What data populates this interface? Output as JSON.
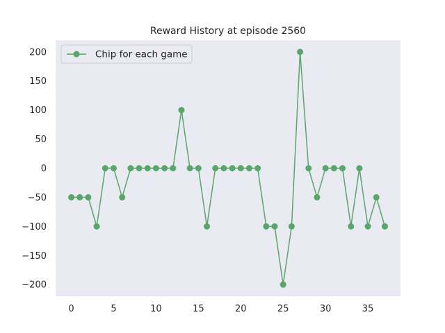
{
  "chart_data": {
    "type": "line",
    "title": "Reward History at episode 2560",
    "xlabel": "",
    "ylabel": "",
    "x": [
      0,
      1,
      2,
      3,
      4,
      5,
      6,
      7,
      8,
      9,
      10,
      11,
      12,
      13,
      14,
      15,
      16,
      17,
      18,
      19,
      20,
      21,
      22,
      23,
      24,
      25,
      26,
      27,
      28,
      29,
      30,
      31,
      32,
      33,
      34,
      35,
      36,
      37
    ],
    "series": [
      {
        "name": "Chip for each game",
        "color": "#55a868",
        "marker": "circle",
        "values": [
          -50,
          -50,
          -50,
          -100,
          0,
          0,
          -50,
          0,
          0,
          0,
          0,
          0,
          0,
          100,
          0,
          0,
          -100,
          0,
          0,
          0,
          0,
          0,
          0,
          -100,
          -100,
          -200,
          -100,
          200,
          0,
          -50,
          0,
          0,
          0,
          -100,
          0,
          -100,
          -50,
          -100
        ]
      }
    ],
    "xlim": [
      -1.85,
      38.85
    ],
    "ylim": [
      -220,
      220
    ],
    "xticks": [
      0,
      5,
      10,
      15,
      20,
      25,
      30,
      35
    ],
    "xtick_labels": [
      "0",
      "5",
      "10",
      "15",
      "20",
      "25",
      "30",
      "35"
    ],
    "yticks": [
      -200,
      -150,
      -100,
      -50,
      0,
      50,
      100,
      150,
      200
    ],
    "ytick_labels": [
      "−200",
      "−150",
      "−100",
      "−50",
      "0",
      "50",
      "100",
      "150",
      "200"
    ],
    "grid": false,
    "legend_position": "top-left",
    "plot_background": "#eaeaf2"
  }
}
